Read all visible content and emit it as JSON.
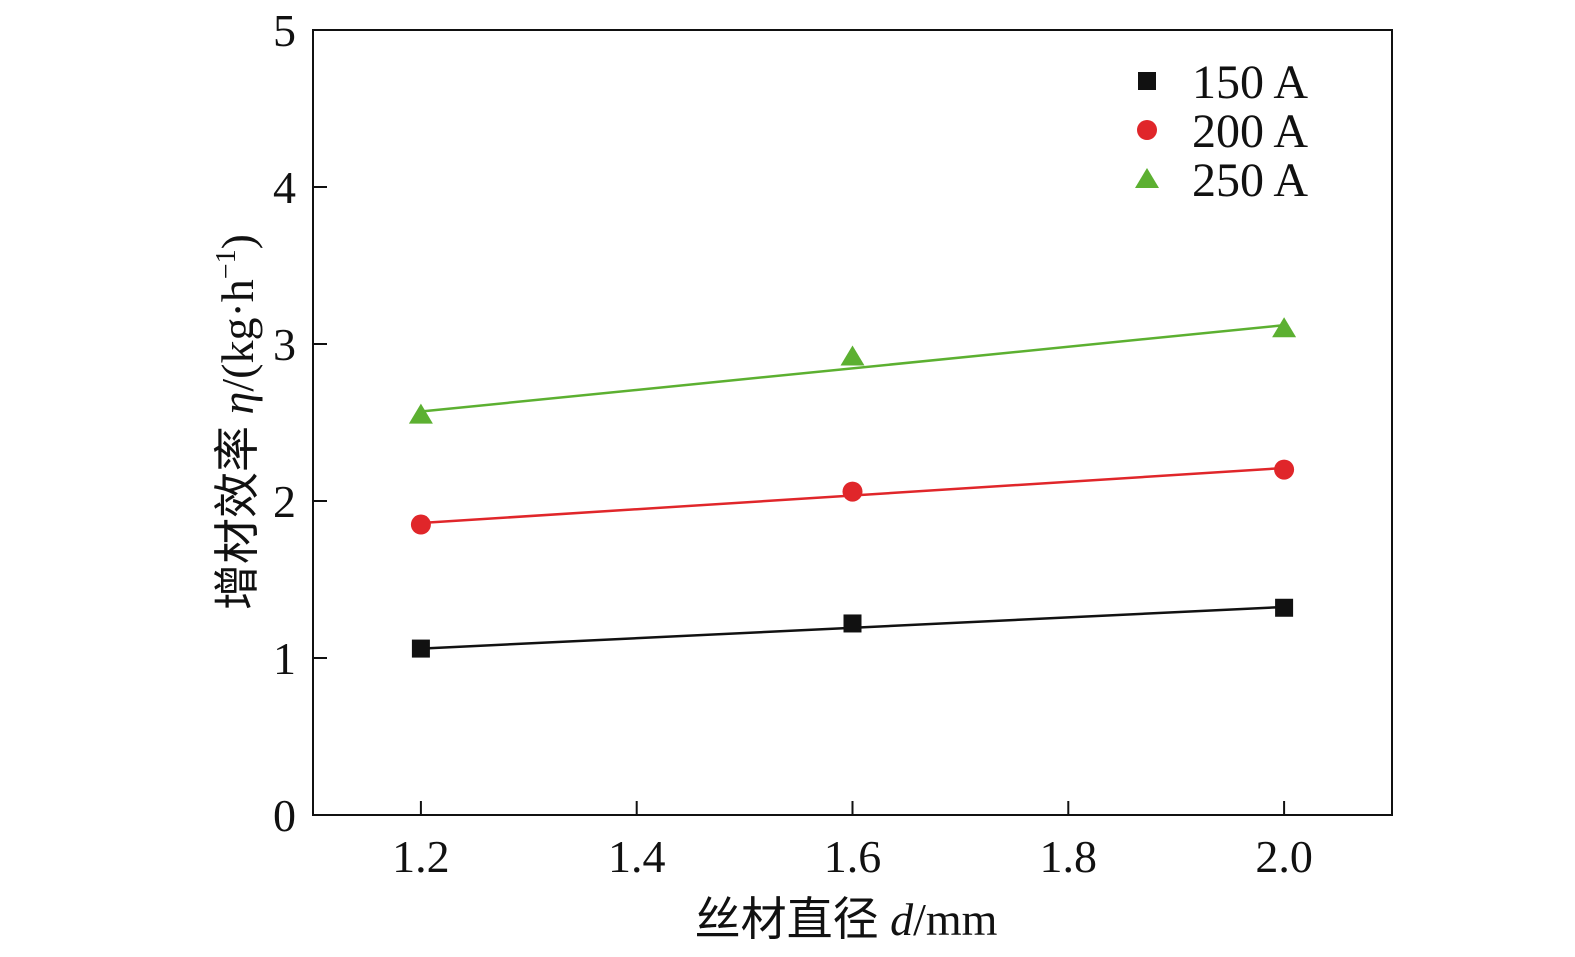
{
  "chart_data": {
    "type": "scatter",
    "title": "",
    "xlabel": "丝材直径 d/mm",
    "xlabel_parts": {
      "cn": "丝材直径 ",
      "var": "d",
      "unit": "/mm"
    },
    "ylabel": "增材效率 η/(kg·h⁻¹)",
    "ylabel_parts": {
      "cn": "增材效率 ",
      "var": "η",
      "unit": "/(kg·h",
      "sup": "−1",
      "close": ")"
    },
    "xlim": [
      1.1,
      2.1
    ],
    "ylim": [
      0,
      5
    ],
    "xticks": [
      1.2,
      1.4,
      1.6,
      1.8,
      2.0
    ],
    "xtick_labels": [
      "1.2",
      "1.4",
      "1.6",
      "1.8",
      "2.0"
    ],
    "yticks": [
      0,
      1,
      2,
      3,
      4,
      5
    ],
    "ytick_labels": [
      "0",
      "1",
      "2",
      "3",
      "4",
      "5"
    ],
    "grid": false,
    "legend_position": "top-right",
    "x": [
      1.2,
      1.6,
      2.0
    ],
    "series": [
      {
        "name": "150 A",
        "marker": "square",
        "color": "#111111",
        "values": [
          1.06,
          1.22,
          1.32
        ],
        "fit": [
          1.06,
          1.325
        ]
      },
      {
        "name": "200 A",
        "marker": "circle",
        "color": "#e0262a",
        "values": [
          1.85,
          2.06,
          2.2
        ],
        "fit": [
          1.86,
          2.21
        ]
      },
      {
        "name": "250 A",
        "marker": "triangle",
        "color": "#5cb031",
        "values": [
          2.55,
          2.92,
          3.1
        ],
        "fit": [
          2.57,
          3.12
        ]
      }
    ]
  }
}
